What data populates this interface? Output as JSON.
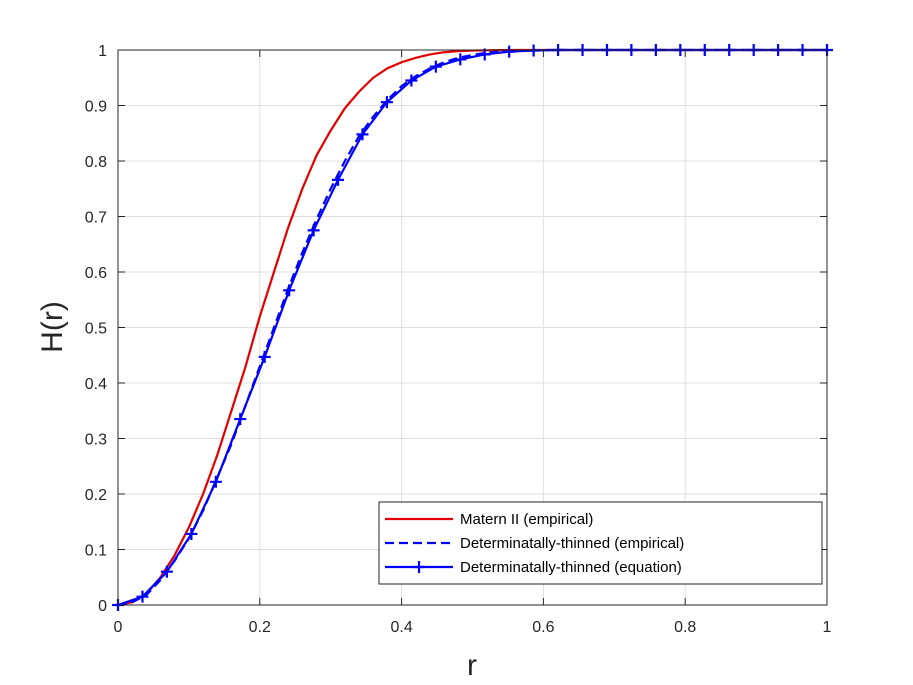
{
  "chart_data": {
    "type": "line",
    "title": "",
    "xlabel": "r",
    "ylabel": "H(r)",
    "xlim": [
      0,
      1
    ],
    "ylim": [
      0,
      1
    ],
    "grid": true,
    "legend_position": "bottom-right",
    "x_ticks": [
      "0",
      "0.2",
      "0.4",
      "0.6",
      "0.8",
      "1"
    ],
    "y_ticks": [
      "0",
      "0.1",
      "0.2",
      "0.3",
      "0.4",
      "0.5",
      "0.6",
      "0.7",
      "0.8",
      "0.9",
      "1"
    ],
    "series": [
      {
        "name": "Matern II (empirical)",
        "color": "#e50000",
        "style": "solid",
        "marker": "none",
        "x": [
          0,
          0.02,
          0.04,
          0.06,
          0.08,
          0.1,
          0.12,
          0.14,
          0.16,
          0.18,
          0.2,
          0.22,
          0.24,
          0.26,
          0.28,
          0.3,
          0.32,
          0.34,
          0.36,
          0.38,
          0.4,
          0.42,
          0.44,
          0.46,
          0.48,
          0.5,
          0.55,
          0.6,
          0.7,
          0.8,
          0.9,
          1.0
        ],
        "y": [
          0,
          0.005,
          0.02,
          0.05,
          0.09,
          0.14,
          0.2,
          0.27,
          0.35,
          0.43,
          0.52,
          0.6,
          0.68,
          0.75,
          0.81,
          0.855,
          0.895,
          0.925,
          0.95,
          0.967,
          0.978,
          0.986,
          0.992,
          0.996,
          0.998,
          0.999,
          1.0,
          1.0,
          1.0,
          1.0,
          1.0,
          1.0
        ]
      },
      {
        "name": "Determinatally-thinned (empirical)",
        "color": "#0000ff",
        "style": "dashed",
        "marker": "none",
        "x": [
          0,
          0.02,
          0.04,
          0.06,
          0.08,
          0.1,
          0.12,
          0.14,
          0.16,
          0.18,
          0.2,
          0.22,
          0.24,
          0.26,
          0.28,
          0.3,
          0.32,
          0.34,
          0.36,
          0.38,
          0.4,
          0.42,
          0.44,
          0.46,
          0.48,
          0.5,
          0.52,
          0.55,
          0.6,
          0.7,
          0.8,
          0.9,
          1.0
        ],
        "y": [
          0,
          0.005,
          0.018,
          0.045,
          0.08,
          0.12,
          0.17,
          0.23,
          0.29,
          0.36,
          0.43,
          0.5,
          0.57,
          0.635,
          0.695,
          0.75,
          0.8,
          0.845,
          0.88,
          0.91,
          0.935,
          0.953,
          0.967,
          0.978,
          0.986,
          0.991,
          0.995,
          0.998,
          1.0,
          1.0,
          1.0,
          1.0,
          1.0
        ]
      },
      {
        "name": "Determinatally-thinned (equation)",
        "color": "#0000ff",
        "style": "solid",
        "marker": "+",
        "x": [
          0,
          0.0345,
          0.069,
          0.1035,
          0.138,
          0.1724,
          0.2069,
          0.2414,
          0.2759,
          0.3103,
          0.3448,
          0.3793,
          0.4138,
          0.4483,
          0.4828,
          0.5172,
          0.5517,
          0.5862,
          0.6207,
          0.6552,
          0.6897,
          0.7241,
          0.7586,
          0.7931,
          0.8276,
          0.8621,
          0.8966,
          0.931,
          0.9655,
          1.0
        ],
        "y": [
          0,
          0.015,
          0.06,
          0.128,
          0.222,
          0.335,
          0.447,
          0.567,
          0.675,
          0.766,
          0.848,
          0.906,
          0.945,
          0.97,
          0.983,
          0.992,
          0.997,
          0.999,
          1.0,
          1.0,
          1.0,
          1.0,
          1.0,
          1.0,
          1.0,
          1.0,
          1.0,
          1.0,
          1.0,
          1.0
        ]
      }
    ]
  }
}
